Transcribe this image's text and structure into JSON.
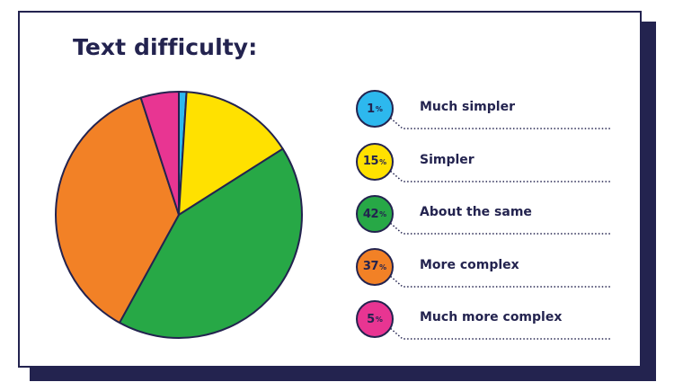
{
  "chart_data": {
    "type": "pie",
    "title": "Text difficulty:",
    "unit": "%",
    "categories": [
      "Much simpler",
      "Simpler",
      "About the same",
      "More complex",
      "Much more complex"
    ],
    "values": [
      1,
      15,
      42,
      37,
      5
    ],
    "colors": [
      "#2db8ee",
      "#ffe100",
      "#27a846",
      "#f28126",
      "#e83592"
    ],
    "outline_color": "#23234f"
  }
}
